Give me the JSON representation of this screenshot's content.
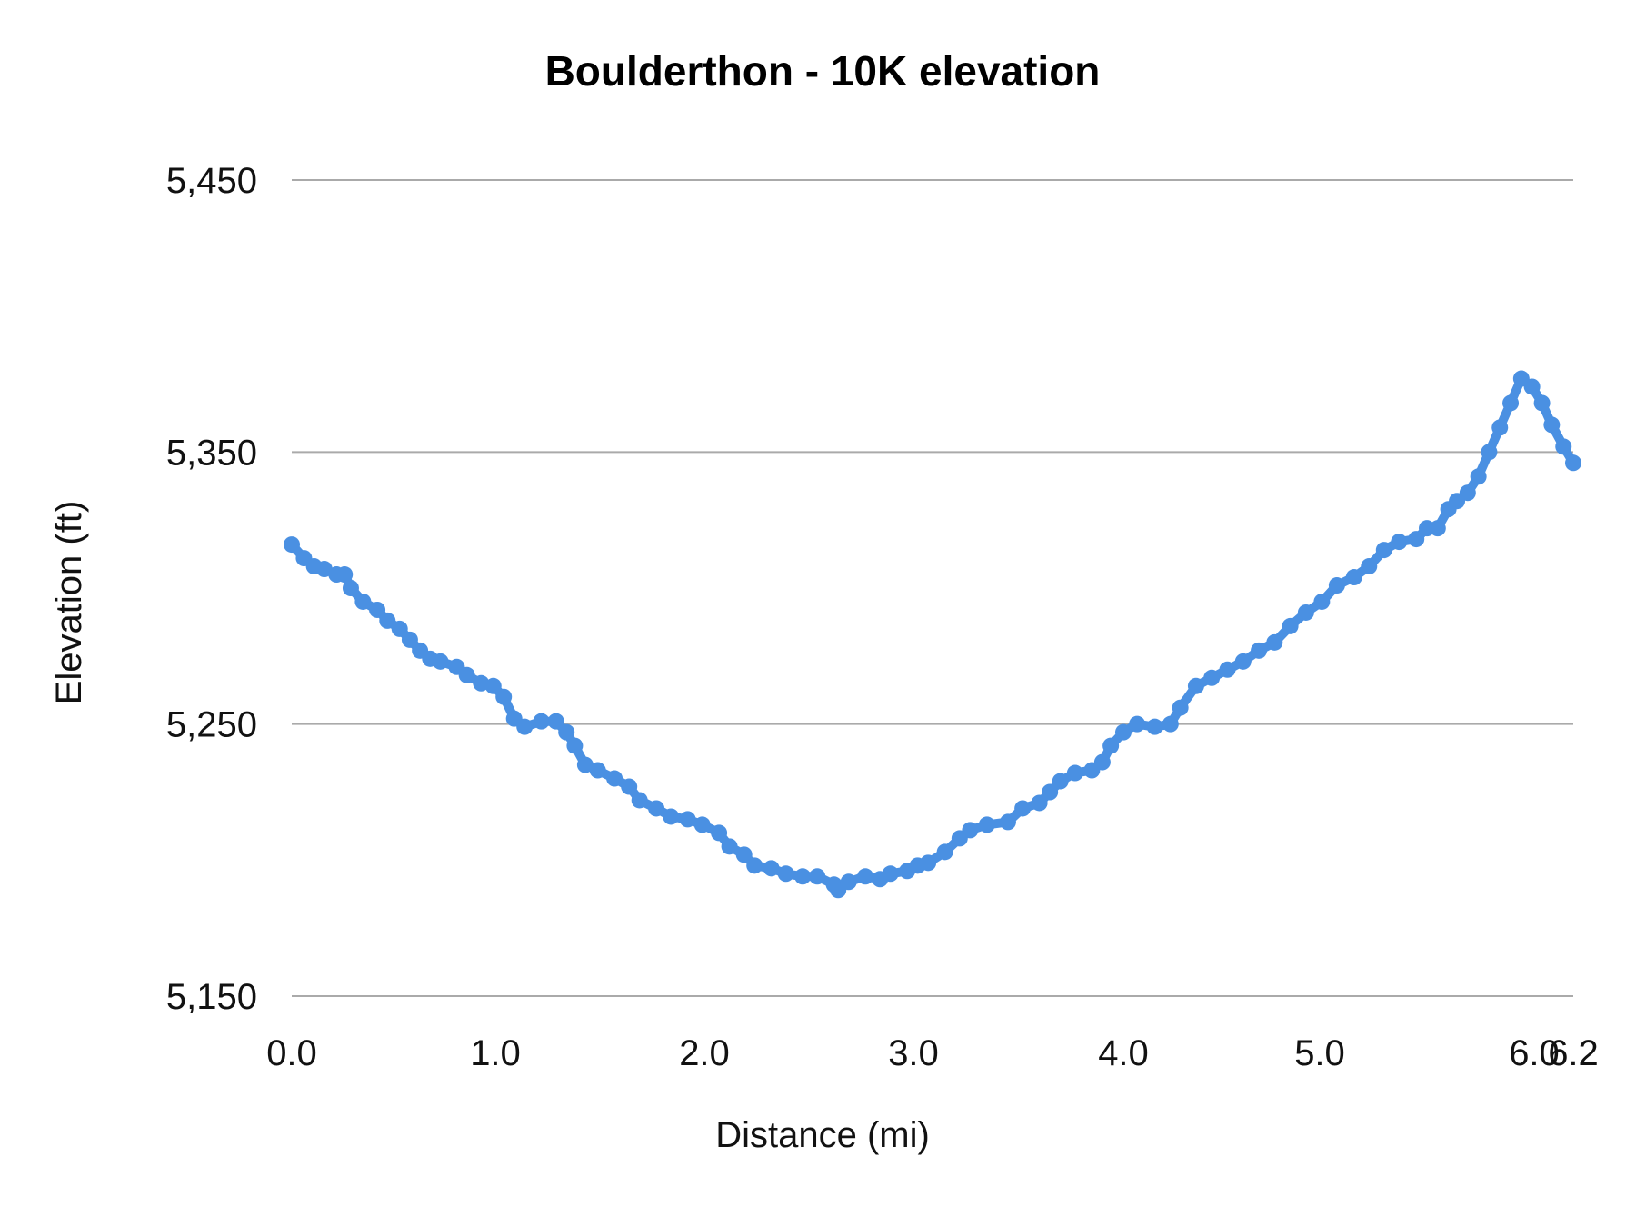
{
  "chart_data": {
    "type": "line",
    "title": "Boulderthon - 10K elevation",
    "xlabel": "Distance (mi)",
    "ylabel": "Elevation (ft)",
    "ylim": [
      5150,
      5450
    ],
    "xlim": [
      0,
      6.2
    ],
    "grid": true,
    "legend": "none",
    "markers": true,
    "color": "#4a90e2",
    "x_ticks": [
      "0.0",
      "1.0",
      "2.0",
      "3.0",
      "4.0",
      "5.0",
      "6.0",
      "6.2"
    ],
    "y_ticks": [
      "5,150",
      "5,250",
      "5,350",
      "5,450"
    ],
    "series": [
      {
        "x": [
          0.0,
          0.06,
          0.11,
          0.16,
          0.22,
          0.26,
          0.29,
          0.35,
          0.42,
          0.47,
          0.53,
          0.58,
          0.63,
          0.68,
          0.73,
          0.81,
          0.86,
          0.93,
          0.99,
          1.04,
          1.09,
          1.14,
          1.22,
          1.29,
          1.34,
          1.38,
          1.43,
          1.49,
          1.57,
          1.64,
          1.69,
          1.77,
          1.84,
          1.92,
          1.99,
          2.07,
          2.12,
          2.19,
          2.24,
          2.32,
          2.39,
          2.47,
          2.54,
          2.62,
          2.64,
          2.69,
          2.77,
          2.84,
          2.89,
          2.97,
          3.02,
          3.07,
          3.15,
          3.22,
          3.27,
          3.35,
          3.45,
          3.52,
          3.6,
          3.65,
          3.7,
          3.77,
          3.85,
          3.9,
          3.94,
          4.0,
          4.07,
          4.16,
          4.24,
          4.29,
          4.37,
          4.45,
          4.53,
          4.61,
          4.69,
          4.77,
          4.85,
          4.93,
          5.01,
          5.08,
          5.16,
          5.23,
          5.3,
          5.37,
          5.45,
          5.5,
          5.55,
          5.6,
          5.64,
          5.69,
          5.74,
          5.79,
          5.84,
          5.89,
          5.94,
          5.99,
          6.04,
          6.09,
          6.15,
          6.2
        ],
        "y": [
          5316,
          5311,
          5308,
          5307,
          5305,
          5305,
          5300,
          5295,
          5292,
          5288,
          5285,
          5281,
          5277,
          5274,
          5273,
          5271,
          5268,
          5265,
          5264,
          5260,
          5252,
          5249,
          5251,
          5251,
          5247,
          5242,
          5235,
          5233,
          5230,
          5227,
          5222,
          5219,
          5216,
          5215,
          5213,
          5210,
          5205,
          5202,
          5198,
          5197,
          5195,
          5194,
          5194,
          5191,
          5189,
          5192,
          5194,
          5193,
          5195,
          5196,
          5198,
          5199,
          5203,
          5208,
          5211,
          5213,
          5214,
          5219,
          5221,
          5225,
          5229,
          5232,
          5233,
          5236,
          5242,
          5247,
          5250,
          5249,
          5250,
          5256,
          5264,
          5267,
          5270,
          5273,
          5277,
          5280,
          5286,
          5291,
          5295,
          5301,
          5304,
          5308,
          5314,
          5317,
          5318,
          5322,
          5322,
          5329,
          5332,
          5335,
          5341,
          5350,
          5359,
          5368,
          5377,
          5374,
          5368,
          5360,
          5352,
          5346
        ]
      }
    ]
  }
}
